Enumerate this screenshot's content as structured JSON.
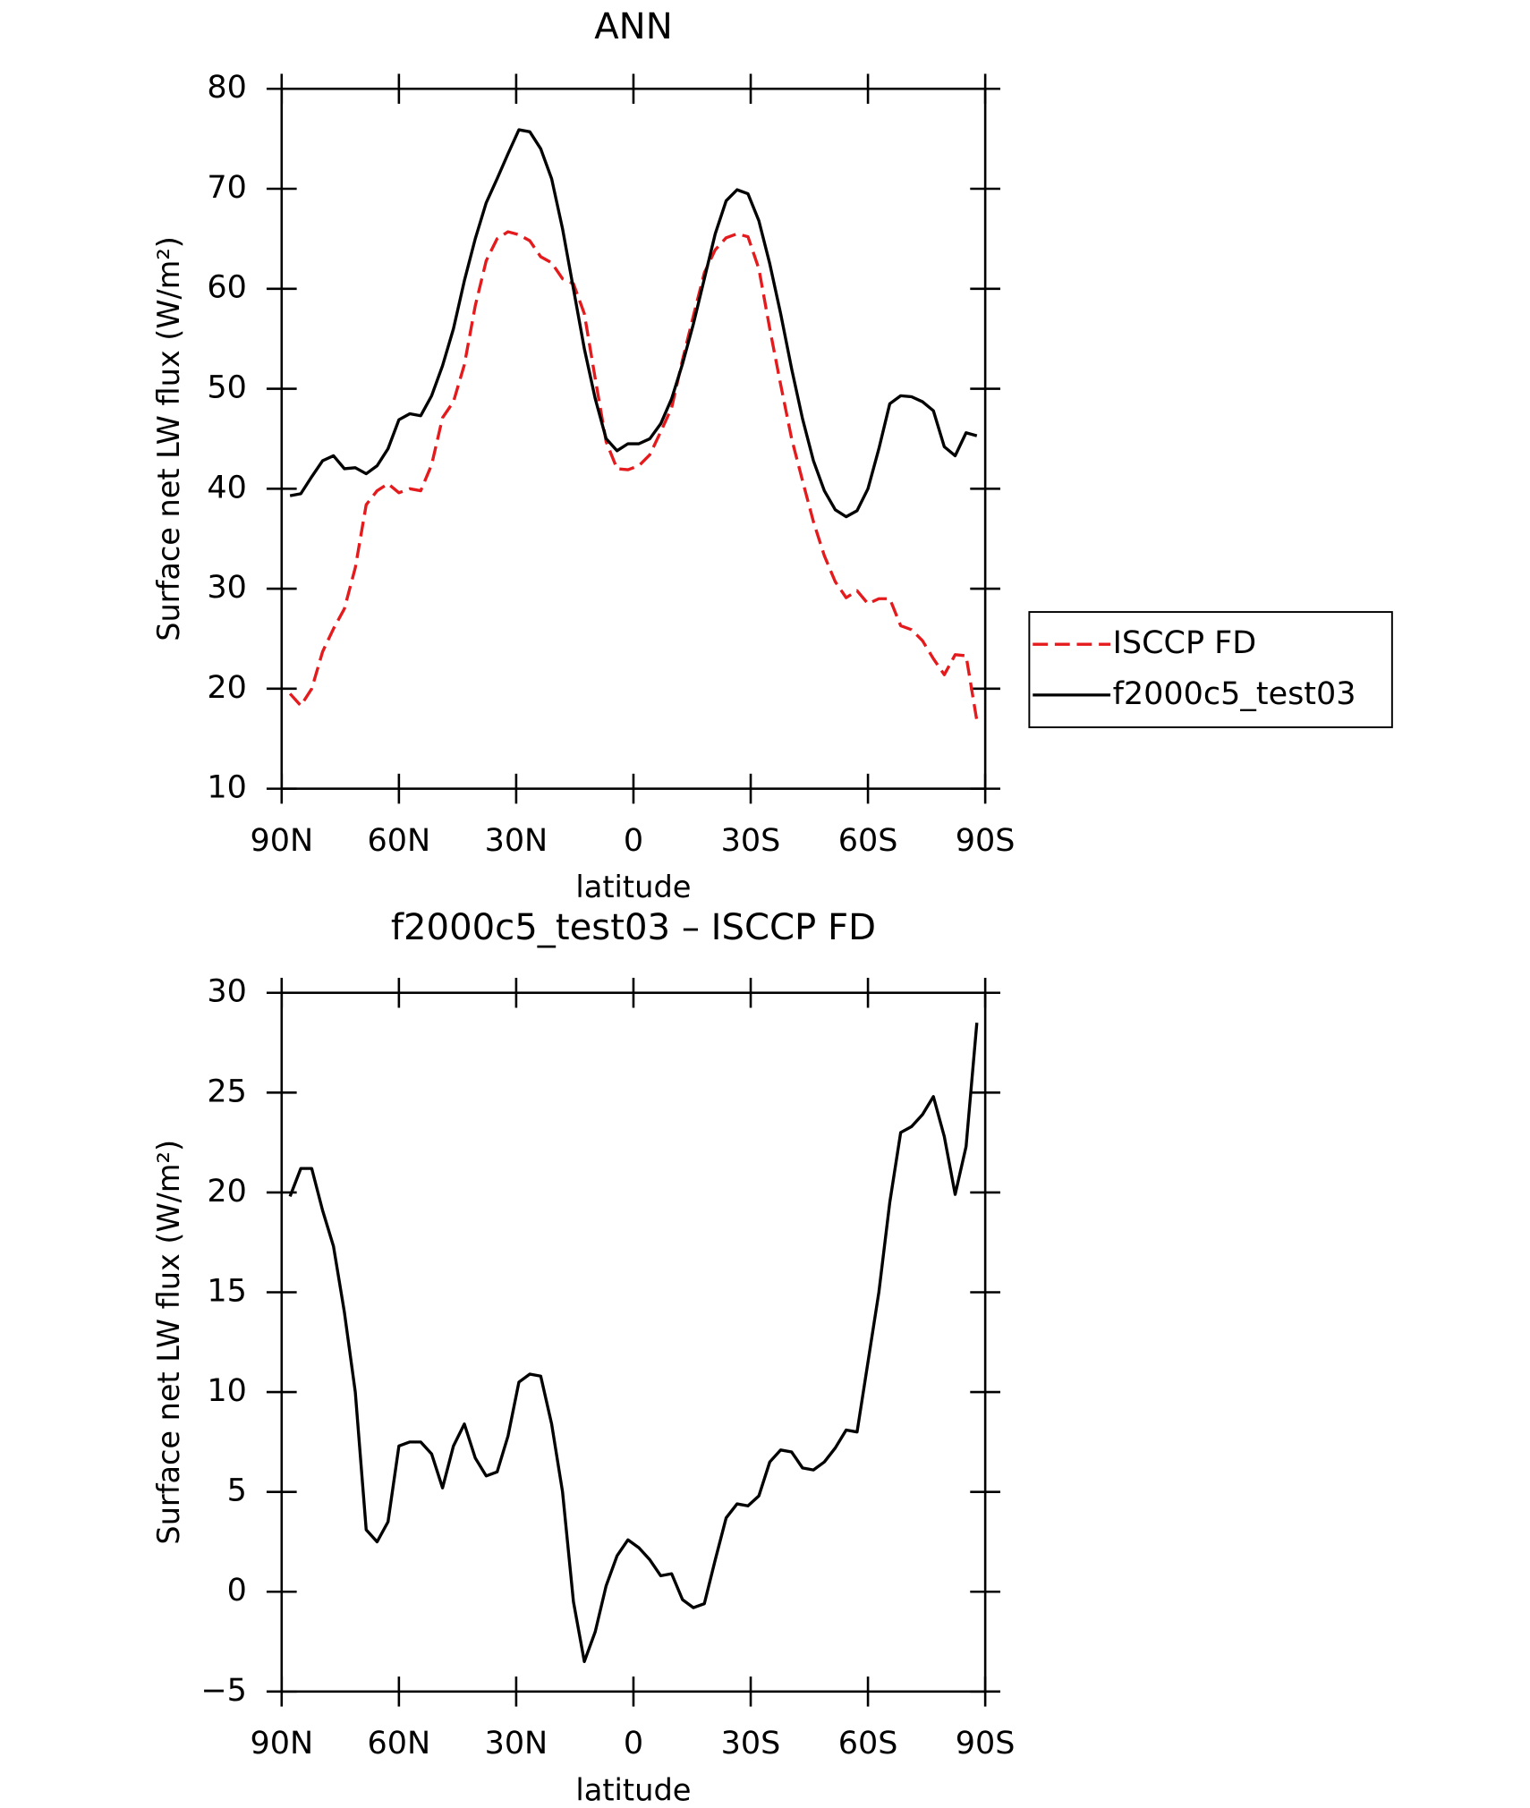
{
  "chart_data": [
    {
      "type": "line",
      "title": "ANN",
      "xlabel": "latitude",
      "ylabel": "Surface net LW flux (W/m²)",
      "x": [
        87.86,
        85.1,
        82.31,
        79.53,
        76.74,
        73.95,
        71.16,
        68.37,
        65.58,
        62.79,
        60.0,
        57.21,
        54.42,
        51.63,
        48.84,
        46.05,
        43.26,
        40.47,
        37.67,
        34.88,
        32.09,
        29.3,
        26.51,
        23.72,
        20.93,
        18.14,
        15.35,
        12.56,
        9.77,
        6.98,
        4.19,
        1.4,
        -1.4,
        -4.19,
        -6.98,
        -9.77,
        -12.56,
        -15.35,
        -18.14,
        -20.93,
        -23.72,
        -26.51,
        -29.3,
        -32.09,
        -34.88,
        -37.67,
        -40.47,
        -43.26,
        -46.05,
        -48.84,
        -51.63,
        -54.42,
        -57.21,
        -60.0,
        -62.79,
        -65.58,
        -68.37,
        -71.16,
        -73.95,
        -76.74,
        -79.53,
        -82.31,
        -85.1,
        -87.86
      ],
      "series": [
        {
          "name": "ISCCP FD",
          "color": "#e41a1c",
          "line_style": "dashed",
          "values": [
            19.5,
            18.3,
            20.0,
            23.7,
            26.0,
            28.0,
            32.1,
            38.4,
            39.8,
            40.5,
            39.6,
            40.0,
            39.8,
            42.4,
            47.1,
            48.7,
            52.4,
            58.3,
            62.8,
            65.0,
            65.7,
            65.4,
            64.8,
            63.2,
            62.6,
            61.0,
            60.5,
            57.5,
            51.0,
            44.7,
            42.0,
            41.9,
            42.3,
            43.4,
            45.7,
            48.1,
            52.9,
            57.3,
            61.6,
            63.9,
            65.1,
            65.5,
            65.2,
            62.0,
            56.0,
            50.4,
            45.0,
            40.8,
            36.7,
            33.3,
            30.7,
            29.1,
            29.8,
            28.5,
            29.0,
            29.0,
            26.3,
            25.9,
            24.8,
            23.0,
            21.4,
            23.4,
            23.3,
            16.8
          ]
        },
        {
          "name": "f2000c5_test03",
          "color": "#000000",
          "line_style": "solid",
          "values": [
            39.3,
            39.5,
            41.2,
            42.8,
            43.3,
            42.0,
            42.1,
            41.5,
            42.3,
            44.0,
            46.9,
            47.5,
            47.3,
            49.3,
            52.3,
            56.0,
            60.8,
            65.0,
            68.6,
            71.0,
            73.5,
            75.9,
            75.7,
            74.0,
            71.0,
            66.0,
            60.0,
            54.0,
            49.0,
            45.0,
            43.8,
            44.5,
            44.5,
            45.0,
            46.5,
            49.0,
            52.5,
            56.5,
            61.0,
            65.5,
            68.8,
            69.9,
            69.5,
            66.8,
            62.5,
            57.5,
            52.0,
            47.0,
            42.8,
            39.8,
            37.9,
            37.2,
            37.8,
            40.0,
            44.0,
            48.5,
            49.3,
            49.2,
            48.7,
            47.8,
            44.2,
            43.3,
            45.6,
            45.3
          ]
        }
      ],
      "xlim": [
        90,
        -90
      ],
      "xticks": [
        {
          "value": 90,
          "label": "90N"
        },
        {
          "value": 60,
          "label": "60N"
        },
        {
          "value": 30,
          "label": "30N"
        },
        0,
        {
          "value": -30,
          "label": "30S"
        },
        {
          "value": -60,
          "label": "60S"
        },
        {
          "value": -90,
          "label": "90S"
        }
      ],
      "ylim": [
        10,
        80
      ],
      "yticks": [
        10,
        20,
        30,
        40,
        50,
        60,
        70,
        80
      ],
      "legend": "right"
    },
    {
      "type": "line",
      "title": "f2000c5_test03 – ISCCP FD",
      "xlabel": "latitude",
      "ylabel": "Surface net LW flux (W/m²)",
      "x": [
        87.86,
        85.1,
        82.31,
        79.53,
        76.74,
        73.95,
        71.16,
        68.37,
        65.58,
        62.79,
        60.0,
        57.21,
        54.42,
        51.63,
        48.84,
        46.05,
        43.26,
        40.47,
        37.67,
        34.88,
        32.09,
        29.3,
        26.51,
        23.72,
        20.93,
        18.14,
        15.35,
        12.56,
        9.77,
        6.98,
        4.19,
        1.4,
        -1.4,
        -4.19,
        -6.98,
        -9.77,
        -12.56,
        -15.35,
        -18.14,
        -20.93,
        -23.72,
        -26.51,
        -29.3,
        -32.09,
        -34.88,
        -37.67,
        -40.47,
        -43.26,
        -46.05,
        -48.84,
        -51.63,
        -54.42,
        -57.21,
        -60.0,
        -62.79,
        -65.58,
        -68.37,
        -71.16,
        -73.95,
        -76.74,
        -79.53,
        -82.31,
        -85.1,
        -87.86
      ],
      "series": [
        {
          "color": "#000000",
          "line_style": "solid",
          "values": [
            19.8,
            21.2,
            21.2,
            19.1,
            17.3,
            14.0,
            10.0,
            3.1,
            2.5,
            3.5,
            7.3,
            7.5,
            7.5,
            6.9,
            5.2,
            7.3,
            8.4,
            6.7,
            5.8,
            6.0,
            7.8,
            10.5,
            10.9,
            10.8,
            8.4,
            5.0,
            -0.5,
            -3.5,
            -2.0,
            0.3,
            1.8,
            2.6,
            2.2,
            1.6,
            0.8,
            0.9,
            -0.4,
            -0.8,
            -0.6,
            1.6,
            3.7,
            4.4,
            4.3,
            4.8,
            6.5,
            7.1,
            7.0,
            6.2,
            6.1,
            6.5,
            7.2,
            8.1,
            8.0,
            11.5,
            15.0,
            19.5,
            23.0,
            23.3,
            23.9,
            24.8,
            22.8,
            19.9,
            22.3,
            28.5
          ]
        }
      ],
      "xlim": [
        90,
        -90
      ],
      "xticks": [
        {
          "value": 90,
          "label": "90N"
        },
        {
          "value": 60,
          "label": "60N"
        },
        {
          "value": 30,
          "label": "30N"
        },
        0,
        {
          "value": -30,
          "label": "30S"
        },
        {
          "value": -60,
          "label": "60S"
        },
        {
          "value": -90,
          "label": "90S"
        }
      ],
      "ylim": [
        -5,
        30
      ],
      "yticks": [
        {
          "value": -5,
          "label": "−5"
        },
        0,
        5,
        10,
        15,
        20,
        25,
        30
      ]
    }
  ]
}
